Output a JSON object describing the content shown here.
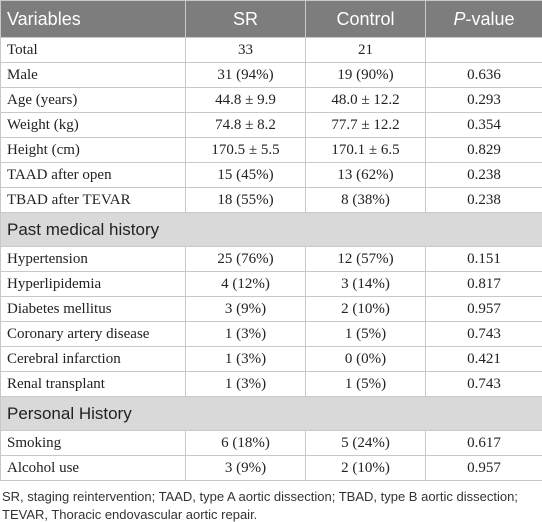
{
  "header": {
    "columns": [
      "Variables",
      "SR",
      "Control"
    ],
    "p_value": {
      "italic": "P",
      "rest": "-value"
    }
  },
  "groups": [
    {
      "rows": [
        [
          "Total",
          "33",
          "21",
          null
        ],
        [
          "Male",
          "31 (94%)",
          "19 (90%)",
          "0.636"
        ],
        [
          "Age (years)",
          "44.8 ± 9.9",
          "48.0 ± 12.2",
          "0.293"
        ],
        [
          "Weight (kg)",
          "74.8 ± 8.2",
          "77.7 ± 12.2",
          "0.354"
        ],
        [
          "Height (cm)",
          "170.5 ± 5.5",
          "170.1 ± 6.5",
          "0.829"
        ],
        [
          "TAAD after open",
          "15 (45%)",
          "13 (62%)",
          "0.238"
        ],
        [
          "TBAD after TEVAR",
          "18 (55%)",
          "8 (38%)",
          "0.238"
        ]
      ]
    },
    {
      "title": "Past medical history",
      "rows": [
        [
          "Hypertension",
          "25 (76%)",
          "12 (57%)",
          "0.151"
        ],
        [
          "Hyperlipidemia",
          "4 (12%)",
          "3 (14%)",
          "0.817"
        ],
        [
          "Diabetes mellitus",
          "3 (9%)",
          "2 (10%)",
          "0.957"
        ],
        [
          "Coronary artery disease",
          "1 (3%)",
          "1 (5%)",
          "0.743"
        ],
        [
          "Cerebral infarction",
          "1 (3%)",
          "0 (0%)",
          "0.421"
        ],
        [
          "Renal transplant",
          "1 (3%)",
          "1 (5%)",
          "0.743"
        ]
      ]
    },
    {
      "title": "Personal History",
      "rows": [
        [
          "Smoking",
          "6 (18%)",
          "5 (24%)",
          "0.617"
        ],
        [
          "Alcohol use",
          "3 (9%)",
          "2 (10%)",
          "0.957"
        ]
      ]
    }
  ],
  "footnote": "SR, staging reintervention; TAAD, type A aortic dissection; TBAD, type B aortic dissection; TEVAR, Thoracic endovascular aortic repair."
}
